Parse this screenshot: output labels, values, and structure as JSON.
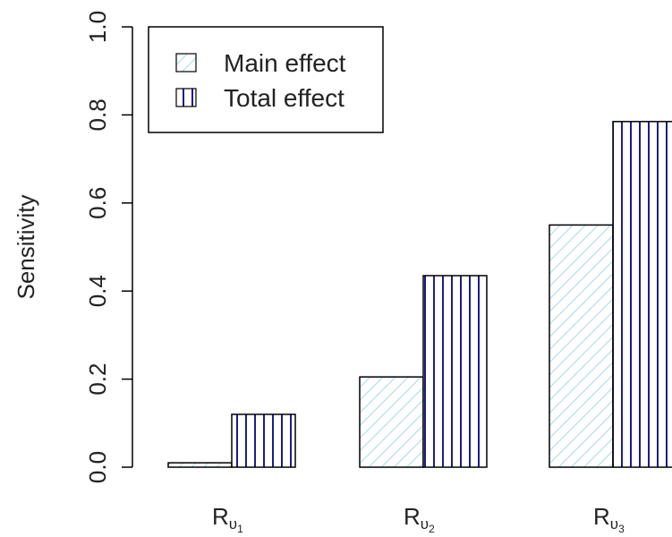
{
  "chart_data": {
    "type": "bar",
    "ylabel": "Sensitivity",
    "ylim": [
      0,
      1.0
    ],
    "yticks": [
      "0.0",
      "0.2",
      "0.4",
      "0.6",
      "0.8",
      "1.0"
    ],
    "categories": [
      {
        "base": "R",
        "sub": "υ",
        "subsub": "1"
      },
      {
        "base": "R",
        "sub": "υ",
        "subsub": "2"
      },
      {
        "base": "R",
        "sub": "υ",
        "subsub": "3"
      }
    ],
    "series": [
      {
        "name": "Main effect",
        "values": [
          0.01,
          0.205,
          0.55
        ],
        "color": "#a9d8e6",
        "pattern": "diagonal-hatch"
      },
      {
        "name": "Total effect",
        "values": [
          0.12,
          0.435,
          0.785
        ],
        "color": "#1c1c8c",
        "pattern": "vertical-lines"
      }
    ],
    "legend_position": "top-left",
    "grid": false
  }
}
